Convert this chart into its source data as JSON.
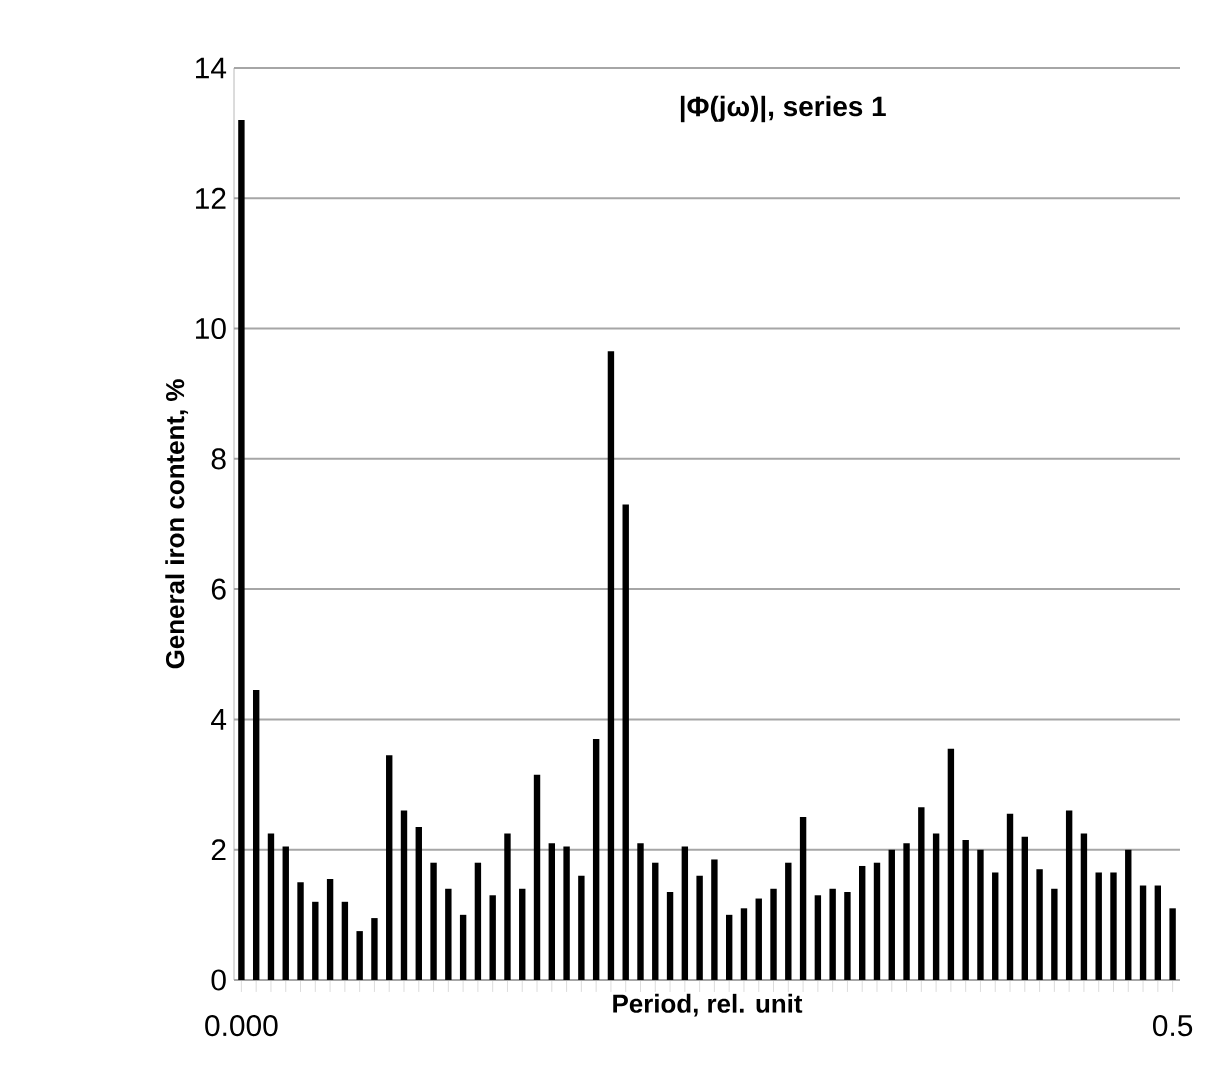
{
  "chart_data": {
    "type": "bar",
    "title": "|Φ(jω)|, series 1",
    "xlabel": "Period, rel. unit",
    "ylabel": "General iron content, %",
    "categories": [
      "0.000",
      null,
      null,
      null,
      null,
      null,
      null,
      null,
      null,
      null,
      null,
      null,
      null,
      null,
      null,
      null,
      null,
      null,
      null,
      null,
      null,
      null,
      null,
      null,
      null,
      null,
      null,
      null,
      null,
      null,
      null,
      null,
      null,
      null,
      null,
      null,
      null,
      null,
      null,
      null,
      null,
      null,
      null,
      null,
      null,
      null,
      null,
      null,
      null,
      null,
      null,
      null,
      null,
      null,
      null,
      null,
      null,
      null,
      null,
      null,
      null,
      null,
      null,
      "0.5"
    ],
    "values": [
      13.2,
      4.45,
      2.25,
      2.05,
      1.5,
      1.2,
      1.55,
      1.2,
      0.75,
      0.95,
      3.45,
      2.6,
      2.35,
      1.8,
      1.4,
      1.0,
      1.8,
      1.3,
      2.25,
      1.4,
      3.15,
      2.1,
      2.05,
      1.6,
      3.7,
      9.65,
      7.3,
      2.1,
      1.8,
      1.35,
      2.05,
      1.6,
      1.85,
      1.0,
      1.1,
      1.25,
      1.4,
      1.8,
      2.5,
      1.3,
      1.4,
      1.35,
      1.75,
      1.8,
      2.0,
      2.1,
      2.65,
      2.25,
      3.55,
      2.15,
      2.0,
      1.65,
      2.55,
      2.2,
      1.7,
      1.4,
      2.6,
      2.25,
      1.65,
      1.65,
      2.0,
      1.45,
      1.45,
      1.1
    ],
    "color": "#000000",
    "ylim": [
      0,
      14
    ],
    "yticks": [
      0,
      2,
      4,
      6,
      8,
      10,
      12,
      14
    ],
    "grid": "y"
  }
}
